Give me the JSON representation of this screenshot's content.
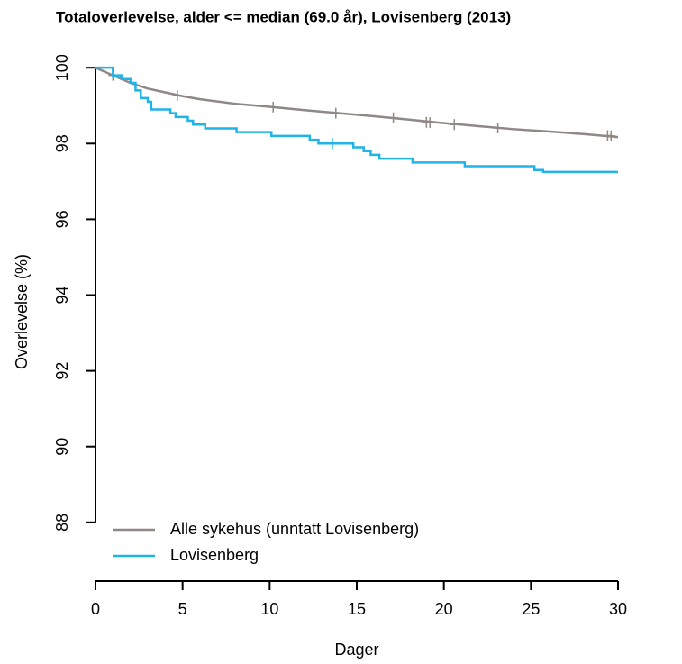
{
  "chart_data": {
    "type": "line",
    "title": "Totaloverlevelse, alder <= median (69.0 år), Lovisenberg (2013)",
    "x_label": "Dager",
    "y_label": "Overlevelse (%)",
    "xlim": [
      0,
      30
    ],
    "xticks": [
      0,
      5,
      10,
      15,
      20,
      25,
      30
    ],
    "ylim": [
      86.45,
      100.48
    ],
    "yticks": [
      88,
      90,
      92,
      94,
      96,
      98,
      100
    ],
    "legend": "bottom-left",
    "series": [
      {
        "name": "Alle sykehus (unntatt Lovisenberg)",
        "color": "#8f8884",
        "x": [
          0,
          0.5,
          1,
          2,
          3,
          4,
          5,
          6,
          8,
          10,
          12,
          14,
          16,
          18,
          20,
          22,
          24,
          26,
          28,
          30
        ],
        "values": [
          100,
          99.9,
          99.8,
          99.6,
          99.45,
          99.35,
          99.25,
          99.17,
          99.05,
          98.97,
          98.88,
          98.8,
          98.72,
          98.63,
          98.54,
          98.46,
          98.38,
          98.32,
          98.25,
          98.17
        ],
        "censored": {
          "x": [
            1,
            4.7,
            10.2,
            13.8,
            17.1,
            19,
            19.2,
            20.6,
            23.1,
            29.4,
            29.6
          ],
          "values": [
            99.8,
            99.27,
            98.96,
            98.8,
            98.68,
            98.56,
            98.55,
            98.5,
            98.41,
            98.21,
            98.2
          ]
        }
      },
      {
        "name": "Lovisenberg",
        "color": "#1eb4e8",
        "x": [
          0,
          1,
          1,
          1.5,
          1.5,
          2,
          2,
          2.3,
          2.3,
          2.6,
          2.6,
          3,
          3,
          3.2,
          3.2,
          4.3,
          4.3,
          4.6,
          4.6,
          5.3,
          5.3,
          5.6,
          5.6,
          6.3,
          6.3,
          8.1,
          8.1,
          10.1,
          10.1,
          12.3,
          12.3,
          12.8,
          12.8,
          14.8,
          14.8,
          15.4,
          15.4,
          15.8,
          15.8,
          16.3,
          16.3,
          18.2,
          18.2,
          21.2,
          21.2,
          25.2,
          25.2,
          25.7,
          25.7,
          30
        ],
        "values": [
          100,
          100,
          99.8,
          99.8,
          99.7,
          99.7,
          99.6,
          99.6,
          99.4,
          99.4,
          99.2,
          99.2,
          99.1,
          99.1,
          98.9,
          98.9,
          98.8,
          98.8,
          98.7,
          98.7,
          98.6,
          98.6,
          98.5,
          98.5,
          98.4,
          98.4,
          98.3,
          98.3,
          98.2,
          98.2,
          98.1,
          98.1,
          98.0,
          98.0,
          97.9,
          97.9,
          97.8,
          97.8,
          97.7,
          97.7,
          97.6,
          97.6,
          97.5,
          97.5,
          97.4,
          97.4,
          97.3,
          97.3,
          97.25,
          97.25
        ],
        "censored": {
          "x": [
            13.6
          ],
          "values": [
            98.0
          ]
        }
      }
    ]
  }
}
